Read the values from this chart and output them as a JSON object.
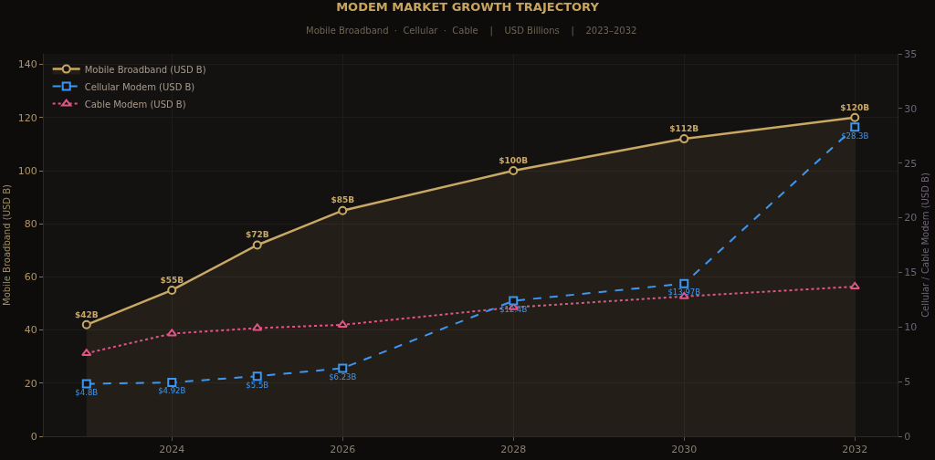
{
  "chart_data": {
    "type": "line",
    "title": "MODEM MARKET GROWTH TRAJECTORY",
    "subtitle": "Mobile Broadband  ·  Cellular  ·  Cable    |    USD Billions    |    2023–2032",
    "ylabel": "Mobile Broadband (USD B)",
    "y2label": "Cellular / Cable Modem (USD B)",
    "x": [
      2023,
      2024,
      2025,
      2026,
      2028,
      2030,
      2032
    ],
    "xlim": [
      2022.5,
      2032.5
    ],
    "xticks": [
      2024,
      2026,
      2028,
      2030,
      2032
    ],
    "ylim": [
      0,
      144
    ],
    "yticks": [
      0,
      20,
      40,
      60,
      80,
      100,
      120,
      140
    ],
    "y2lim": [
      0,
      35
    ],
    "y2ticks": [
      0,
      5,
      10,
      15,
      20,
      25,
      30,
      35
    ],
    "grid": true,
    "legend": "top left",
    "series": [
      {
        "name": "Mobile Broadband (USD B)",
        "type": "area",
        "color": "#c9a865",
        "marker": "circle",
        "line_style": "solid",
        "values": [
          42,
          55,
          72,
          85,
          100,
          112,
          120
        ],
        "value_labels": [
          "$42B",
          "$55B",
          "$72B",
          "$85B",
          "$100B",
          "$112B",
          "$120B"
        ]
      },
      {
        "name": "Cellular Modem (USD B)",
        "axis": "y2",
        "color": "#3d97f2",
        "marker": "square",
        "line_style": "dashed",
        "values": [
          4.8,
          4.92,
          5.5,
          6.23,
          12.4,
          13.97,
          28.3
        ],
        "value_labels": [
          "$4.8B",
          "$4.92B",
          "$5.5B",
          "$6.23B",
          "$12.4B",
          "$13.97B",
          "$28.3B"
        ]
      },
      {
        "name": "Cable Modem (USD B)",
        "axis": "y2",
        "color": "#e05585",
        "marker": "triangle",
        "line_style": "dotted",
        "values": [
          7.6,
          9.4,
          9.9,
          10.2,
          11.8,
          12.8,
          13.7
        ]
      }
    ]
  }
}
